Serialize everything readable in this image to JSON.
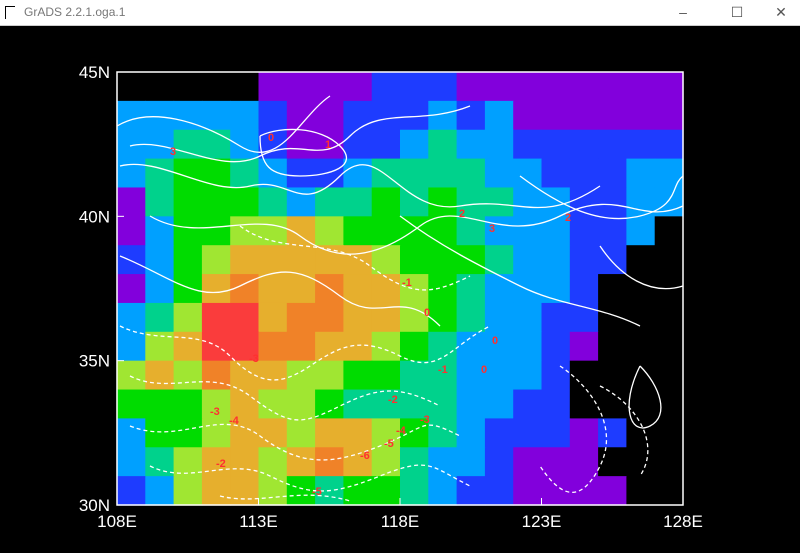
{
  "window": {
    "title": "GrADS 2.2.1.oga.1",
    "minimize_label": "–",
    "maximize_label": "☐",
    "close_label": "✕"
  },
  "map": {
    "lat_labels": [
      "45N",
      "40N",
      "35N",
      "30N"
    ],
    "lon_labels": [
      "108E",
      "113E",
      "118E",
      "123E",
      "128E"
    ],
    "lat_range": [
      30,
      45
    ],
    "lon_range": [
      108,
      128
    ],
    "shading_colors": [
      "#000000",
      "#8200dc",
      "#1e3cff",
      "#00a0ff",
      "#00d28c",
      "#00dc00",
      "#a0e632",
      "#e6af2d",
      "#f08228",
      "#fa3c3c"
    ],
    "contour_color": "#ffffff",
    "label_color": "#ff3030",
    "contour_labels": [
      "0",
      "1",
      "3",
      "2",
      "3",
      "2",
      "-1",
      "0",
      "-3",
      "0",
      "-1",
      "0",
      "-2",
      "-3",
      "-3",
      "-4",
      "-4",
      "-5",
      "-2",
      "-6",
      "-5"
    ]
  }
}
